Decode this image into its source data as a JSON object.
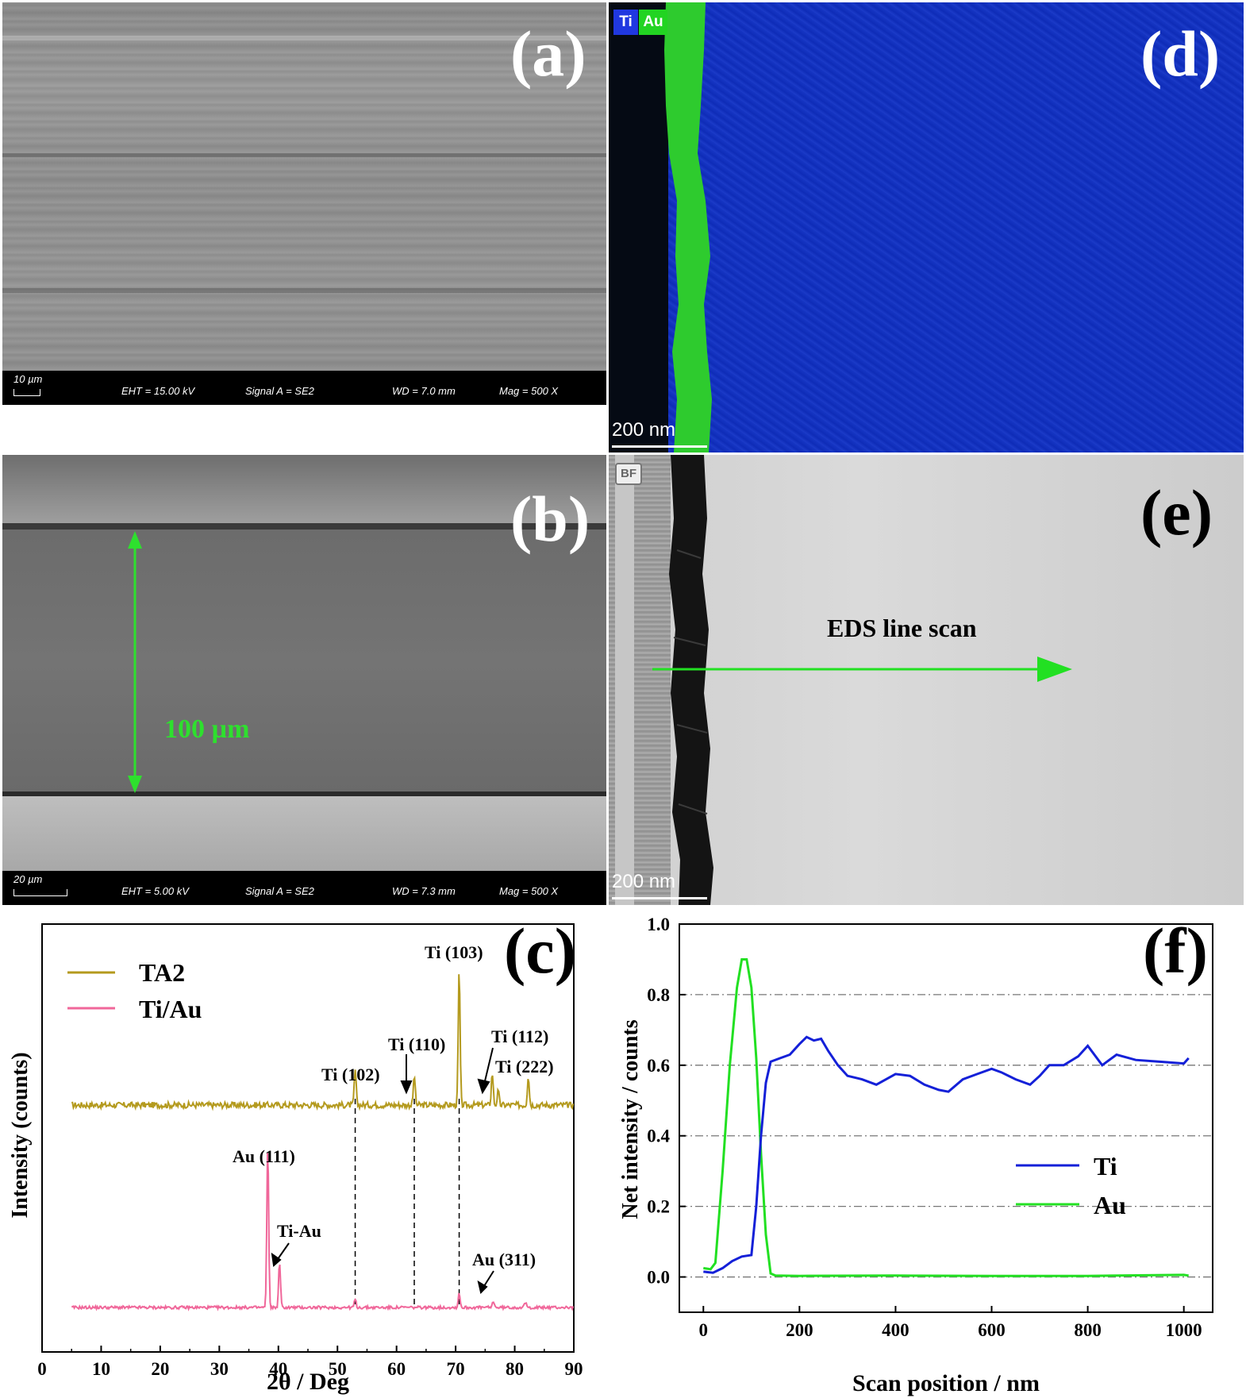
{
  "panel_a": {
    "label": "(a)",
    "scale_text": "10 µm",
    "eht": "EHT = 15.00 kV",
    "signal": "Signal A = SE2",
    "wd": "WD = 7.0 mm",
    "mag": "Mag =    500 X"
  },
  "panel_b": {
    "label": "(b)",
    "scale_text": "20 µm",
    "eht": "EHT =  5.00 kV",
    "signal": "Signal A = SE2",
    "wd": "WD = 7.3 mm",
    "mag": "Mag =    500 X",
    "thickness": "100 µm"
  },
  "panel_d": {
    "label": "(d)",
    "legend_ti": "Ti",
    "legend_au": "Au",
    "scale_text": "200 nm"
  },
  "panel_e": {
    "label": "(e)",
    "bf": "BF",
    "scan_label": "EDS line scan",
    "scale_text": "200 nm"
  },
  "chart_data": [
    {
      "type": "line",
      "panel_label": "(c)",
      "xlabel": "2θ / Deg",
      "ylabel": "Intensity (counts)",
      "xlim": [
        0,
        90
      ],
      "xticks": [
        0,
        10,
        20,
        30,
        40,
        50,
        60,
        70,
        80,
        90
      ],
      "series": [
        {
          "name": "TA2",
          "color": "#b49a1e",
          "peaks": [
            [
              53.0,
              0.26
            ],
            [
              63.0,
              0.22
            ],
            [
              70.6,
              1.0
            ],
            [
              76.2,
              0.24
            ],
            [
              77.2,
              0.1
            ],
            [
              82.3,
              0.22
            ]
          ]
        },
        {
          "name": "Ti/Au",
          "color": "#f0679a",
          "peaks": [
            [
              38.2,
              1.0
            ],
            [
              40.2,
              0.28
            ],
            [
              53.0,
              0.05
            ],
            [
              70.6,
              0.09
            ],
            [
              76.4,
              0.04
            ],
            [
              81.8,
              0.03
            ]
          ]
        }
      ],
      "annotations": [
        "Ti (103)",
        "Ti (110)",
        "Ti (112)",
        "Ti (102)",
        "Ti (222)",
        "Au (111)",
        "Ti-Au",
        "Au (311)"
      ],
      "dashed_lines_x": [
        53.0,
        63.0,
        70.6
      ]
    },
    {
      "type": "line",
      "panel_label": "(f)",
      "xlabel": "Scan position / nm",
      "ylabel": "Net intensity / counts",
      "xlim": [
        -50,
        1060
      ],
      "ylim": [
        -0.1,
        1.0
      ],
      "xticks": [
        0,
        200,
        400,
        600,
        800,
        1000
      ],
      "yticks": [
        "0.0",
        "0.2",
        "0.4",
        "0.6",
        "0.8",
        "1.0"
      ],
      "grid": "horizontal dash-dot",
      "legend": "right",
      "series": [
        {
          "name": "Ti",
          "color": "#1420d8",
          "x": [
            0,
            20,
            40,
            60,
            80,
            100,
            110,
            120,
            130,
            140,
            160,
            180,
            200,
            215,
            230,
            245,
            260,
            280,
            300,
            330,
            360,
            400,
            430,
            460,
            490,
            510,
            540,
            570,
            600,
            620,
            650,
            680,
            700,
            720,
            750,
            780,
            800,
            830,
            860,
            900,
            950,
            1000,
            1010
          ],
          "y": [
            0.015,
            0.012,
            0.025,
            0.045,
            0.058,
            0.062,
            0.2,
            0.4,
            0.55,
            0.61,
            0.62,
            0.63,
            0.66,
            0.68,
            0.67,
            0.675,
            0.64,
            0.6,
            0.57,
            0.56,
            0.545,
            0.575,
            0.57,
            0.545,
            0.53,
            0.525,
            0.56,
            0.575,
            0.59,
            0.58,
            0.56,
            0.545,
            0.57,
            0.6,
            0.6,
            0.625,
            0.655,
            0.6,
            0.63,
            0.615,
            0.61,
            0.605,
            0.62
          ]
        },
        {
          "name": "Au",
          "color": "#22e022",
          "x": [
            0,
            15,
            25,
            40,
            55,
            70,
            80,
            90,
            100,
            110,
            120,
            130,
            140,
            150,
            200,
            400,
            600,
            800,
            1000,
            1010
          ],
          "y": [
            0.025,
            0.022,
            0.04,
            0.3,
            0.6,
            0.82,
            0.9,
            0.9,
            0.82,
            0.62,
            0.35,
            0.12,
            0.01,
            0.004,
            0.003,
            0.004,
            0.003,
            0.003,
            0.006,
            0.004
          ]
        }
      ]
    }
  ]
}
